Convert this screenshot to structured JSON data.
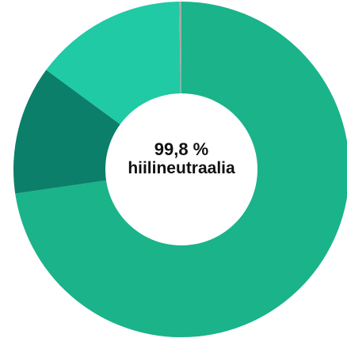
{
  "chart_data": {
    "type": "pie",
    "title": "",
    "center_value": "99,8 %",
    "center_text": "hiilineutraalia",
    "slices": [
      {
        "value": 72.7,
        "color": "#1ab38a"
      },
      {
        "value": 12.4,
        "color": "#0b7f6a"
      },
      {
        "value": 14.7,
        "color": "#1fcaa5"
      },
      {
        "value": 0.2,
        "color": "#a8a8a8"
      }
    ]
  }
}
